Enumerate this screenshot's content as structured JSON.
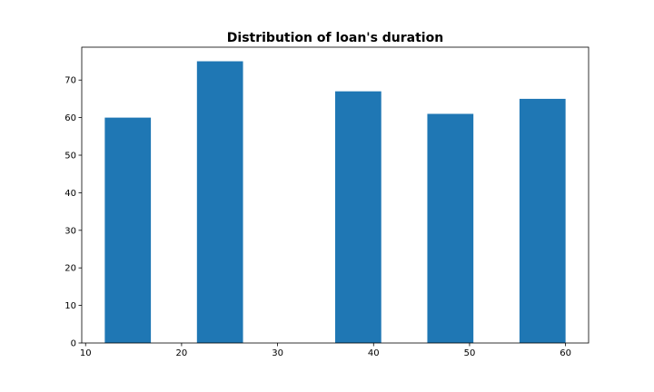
{
  "chart_data": {
    "type": "histogram",
    "title": "Distribution of loan's duration",
    "xlabel": "",
    "ylabel": "",
    "xlim": [
      9.6,
      62.4
    ],
    "ylim": [
      0,
      78.75
    ],
    "bar_color": "#1f77b4",
    "bins": [
      {
        "x0": 12.0,
        "x1": 16.8,
        "count": 60
      },
      {
        "x0": 16.8,
        "x1": 21.6,
        "count": 0
      },
      {
        "x0": 21.6,
        "x1": 26.4,
        "count": 75
      },
      {
        "x0": 26.4,
        "x1": 31.2,
        "count": 0
      },
      {
        "x0": 31.2,
        "x1": 36.0,
        "count": 0
      },
      {
        "x0": 36.0,
        "x1": 40.8,
        "count": 67
      },
      {
        "x0": 40.8,
        "x1": 45.6,
        "count": 0
      },
      {
        "x0": 45.6,
        "x1": 50.4,
        "count": 61
      },
      {
        "x0": 50.4,
        "x1": 55.2,
        "count": 0
      },
      {
        "x0": 55.2,
        "x1": 60.0,
        "count": 65
      }
    ],
    "xticks": [
      10,
      20,
      30,
      40,
      50,
      60
    ],
    "yticks": [
      0,
      10,
      20,
      30,
      40,
      50,
      60,
      70
    ],
    "grid": false,
    "legend": "none"
  }
}
